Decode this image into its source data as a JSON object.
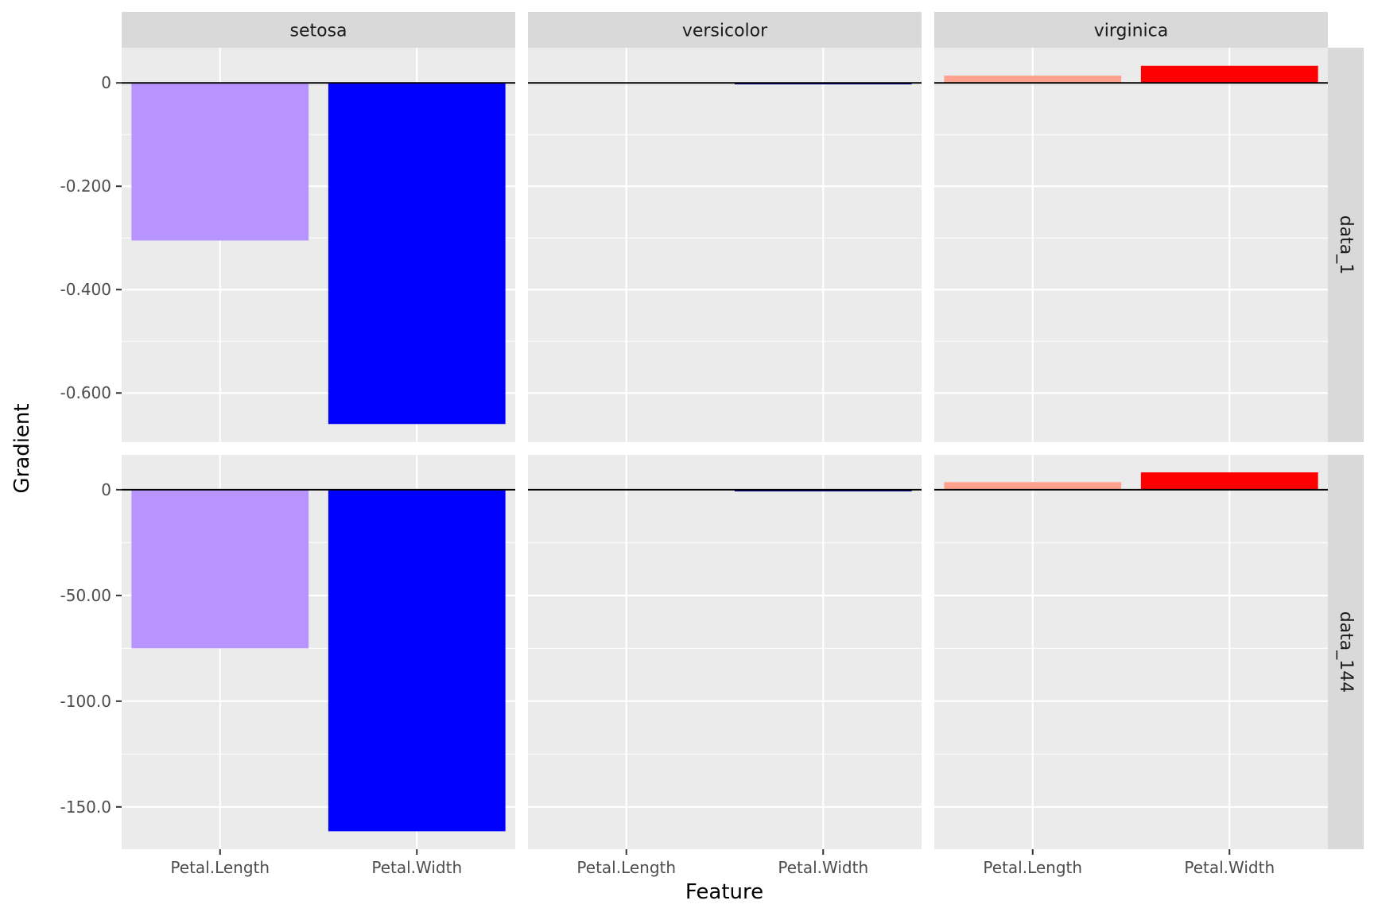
{
  "chart_data": {
    "type": "bar",
    "xlabel": "Feature",
    "ylabel": "Gradient",
    "categories": [
      "Petal.Length",
      "Petal.Width"
    ],
    "columns": [
      "setosa",
      "versicolor",
      "virginica"
    ],
    "rows": [
      "data_1",
      "data_144"
    ],
    "grid": true,
    "colors": {
      "panel_bg": "#EBEBEB",
      "strip_bg": "#D9D9D9",
      "grid": "#FFFFFF",
      "zero_line": "#000000"
    },
    "facet_rows": [
      {
        "name": "data_1",
        "ylim": [
          -0.695,
          0.068
        ],
        "yticks": [
          0,
          -0.2,
          -0.4,
          -0.6
        ],
        "ytick_labels": [
          "0",
          "-0.200",
          "-0.400",
          "-0.600"
        ],
        "panels": [
          {
            "column": "setosa",
            "values": [
              -0.305,
              -0.66
            ],
            "colors": [
              "#B794FF",
              "#0000FF"
            ]
          },
          {
            "column": "versicolor",
            "values": [
              0.0002,
              -0.003
            ],
            "colors": [
              "#F4E4E4",
              "#00008B"
            ]
          },
          {
            "column": "virginica",
            "values": [
              0.014,
              0.033
            ],
            "colors": [
              "#FFA18C",
              "#FF0000"
            ]
          }
        ]
      },
      {
        "name": "data_144",
        "ylim": [
          -170.0,
          16.5
        ],
        "yticks": [
          0,
          -50,
          -100,
          -150
        ],
        "ytick_labels": [
          "0",
          "-50.00",
          "-100.0",
          "-150.0"
        ],
        "panels": [
          {
            "column": "setosa",
            "values": [
              -75.0,
              -161.5
            ],
            "colors": [
              "#B794FF",
              "#0000FF"
            ]
          },
          {
            "column": "versicolor",
            "values": [
              0.05,
              -0.8
            ],
            "colors": [
              "#F4E4E4",
              "#00008B"
            ]
          },
          {
            "column": "virginica",
            "values": [
              3.6,
              8.2
            ],
            "colors": [
              "#FFA18C",
              "#FF0000"
            ]
          }
        ]
      }
    ]
  }
}
